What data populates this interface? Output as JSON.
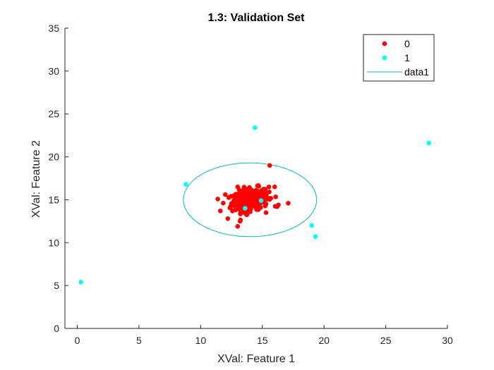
{
  "chart_data": {
    "type": "scatter",
    "title": "1.3: Validation Set",
    "xlabel": "XVal: Feature 1",
    "ylabel": "XVal: Feature 2",
    "xlim": [
      -1,
      30
    ],
    "ylim": [
      0,
      35
    ],
    "xticks": [
      "0",
      "5",
      "10",
      "15",
      "20",
      "25",
      "30"
    ],
    "yticks": [
      "0",
      "5",
      "10",
      "15",
      "20",
      "25",
      "30",
      "35"
    ],
    "grid": false,
    "legend_position": "top-right",
    "legend": [
      {
        "label": "0",
        "marker": "dot",
        "color": "#ff0000"
      },
      {
        "label": "1",
        "marker": "dot",
        "color": "#00ffff"
      },
      {
        "label": "data1",
        "marker": "line",
        "color": "#00bfbf"
      }
    ],
    "series": [
      {
        "name": "0",
        "color": "#ff0000",
        "cluster": {
          "center": [
            14.0,
            15.0
          ],
          "spread": [
            0.75,
            0.75
          ],
          "count": 300
        },
        "points": [
          [
            15.6,
            19.0
          ],
          [
            17.1,
            14.6
          ],
          [
            16.2,
            14.2
          ],
          [
            16.3,
            14.4
          ],
          [
            13.0,
            11.9
          ],
          [
            11.6,
            13.7
          ],
          [
            12.2,
            12.8
          ],
          [
            13.2,
            12.5
          ],
          [
            15.3,
            13.5
          ],
          [
            16.0,
            16.5
          ],
          [
            12.0,
            15.6
          ],
          [
            13.0,
            16.5
          ]
        ]
      },
      {
        "name": "1",
        "color": "#00ffff",
        "points": [
          [
            0.3,
            5.4
          ],
          [
            8.8,
            16.8
          ],
          [
            14.4,
            23.4
          ],
          [
            13.6,
            14.0
          ],
          [
            14.9,
            14.9
          ],
          [
            19.0,
            12.0
          ],
          [
            19.3,
            10.7
          ],
          [
            28.5,
            21.6
          ]
        ]
      },
      {
        "name": "data1",
        "type": "ellipse",
        "color": "#00bfbf",
        "center": [
          14.0,
          15.0
        ],
        "radii": [
          5.4,
          4.3
        ]
      }
    ]
  }
}
